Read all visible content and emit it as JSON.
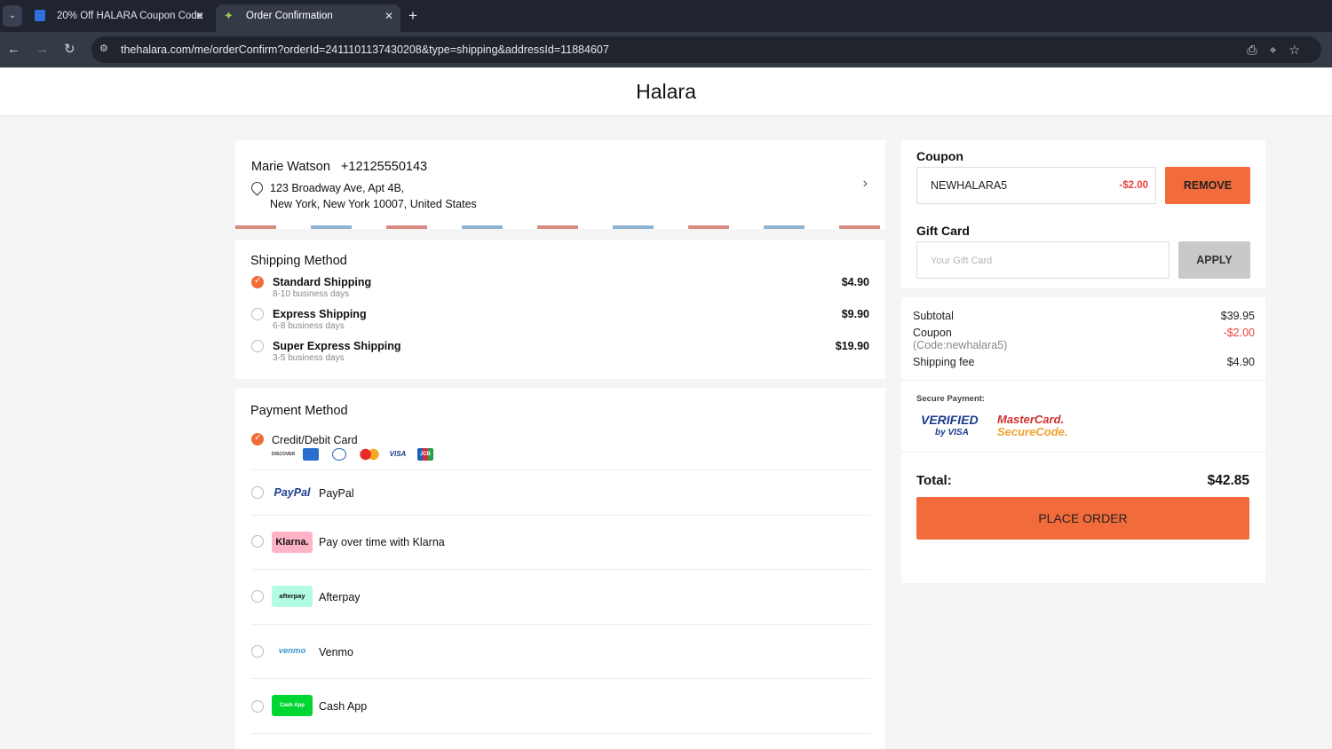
{
  "browser": {
    "tabs": [
      {
        "title": "20% Off HALARA Coupon Code",
        "icon": "bookmark-icon"
      },
      {
        "title": "Order Confirmation",
        "icon": "leaf-icon",
        "active": true
      }
    ],
    "url": "thehalara.com/me/orderConfirm?orderId=2411101137430208&type=shipping&addressId=11884607"
  },
  "site": {
    "brand": "Halara"
  },
  "address": {
    "name": "Marie Watson",
    "phone": "+12125550143",
    "line1": "123 Broadway Ave, Apt 4B,",
    "line2": "New York, New York 10007, United States"
  },
  "shipping": {
    "title": "Shipping Method",
    "options": [
      {
        "name": "Standard Shipping",
        "days": "8-10 business days",
        "price": "$4.90",
        "selected": true
      },
      {
        "name": "Express Shipping",
        "days": "6-8 business days",
        "price": "$9.90",
        "selected": false
      },
      {
        "name": "Super Express Shipping",
        "days": "3-5 business days",
        "price": "$19.90",
        "selected": false
      }
    ]
  },
  "payment": {
    "title": "Payment Method",
    "card": {
      "name": "Credit/Debit Card",
      "logos": [
        "DISCOVER",
        "AMEX",
        "DINERS",
        "MC",
        "VISA",
        "JCB"
      ]
    },
    "options": [
      {
        "logo": "PayPal",
        "name": "PayPal"
      },
      {
        "logo": "Klarna.",
        "name": "Pay over time with Klarna"
      },
      {
        "logo": "afterpay",
        "name": "Afterpay"
      },
      {
        "logo": "venmo",
        "name": "Venmo"
      },
      {
        "logo": "Cash App",
        "name": "Cash App"
      }
    ]
  },
  "coupon": {
    "title": "Coupon",
    "code": "NEWHALARA5",
    "discount": "-$2.00",
    "remove_label": "REMOVE"
  },
  "giftcard": {
    "title": "Gift Card",
    "placeholder": "Your Gift Card",
    "apply_label": "APPLY"
  },
  "summary": {
    "subtotal_label": "Subtotal",
    "subtotal": "$39.95",
    "coupon_label": "Coupon",
    "coupon_code": "(Code:newhalara5)",
    "coupon_value": "-$2.00",
    "shipping_label": "Shipping fee",
    "shipping_value": "$4.90",
    "secure_label": "Secure Payment:",
    "verified_line1": "VERIFIED",
    "verified_line2": "by VISA",
    "mc_line1": "MasterCard.",
    "mc_line2": "SecureCode.",
    "total_label": "Total:",
    "total_value": "$42.85",
    "place_order": "PLACE ORDER"
  },
  "colors": {
    "accent": "#f26b3a",
    "discount": "#e8423c",
    "apply": "#c9c9c9"
  }
}
